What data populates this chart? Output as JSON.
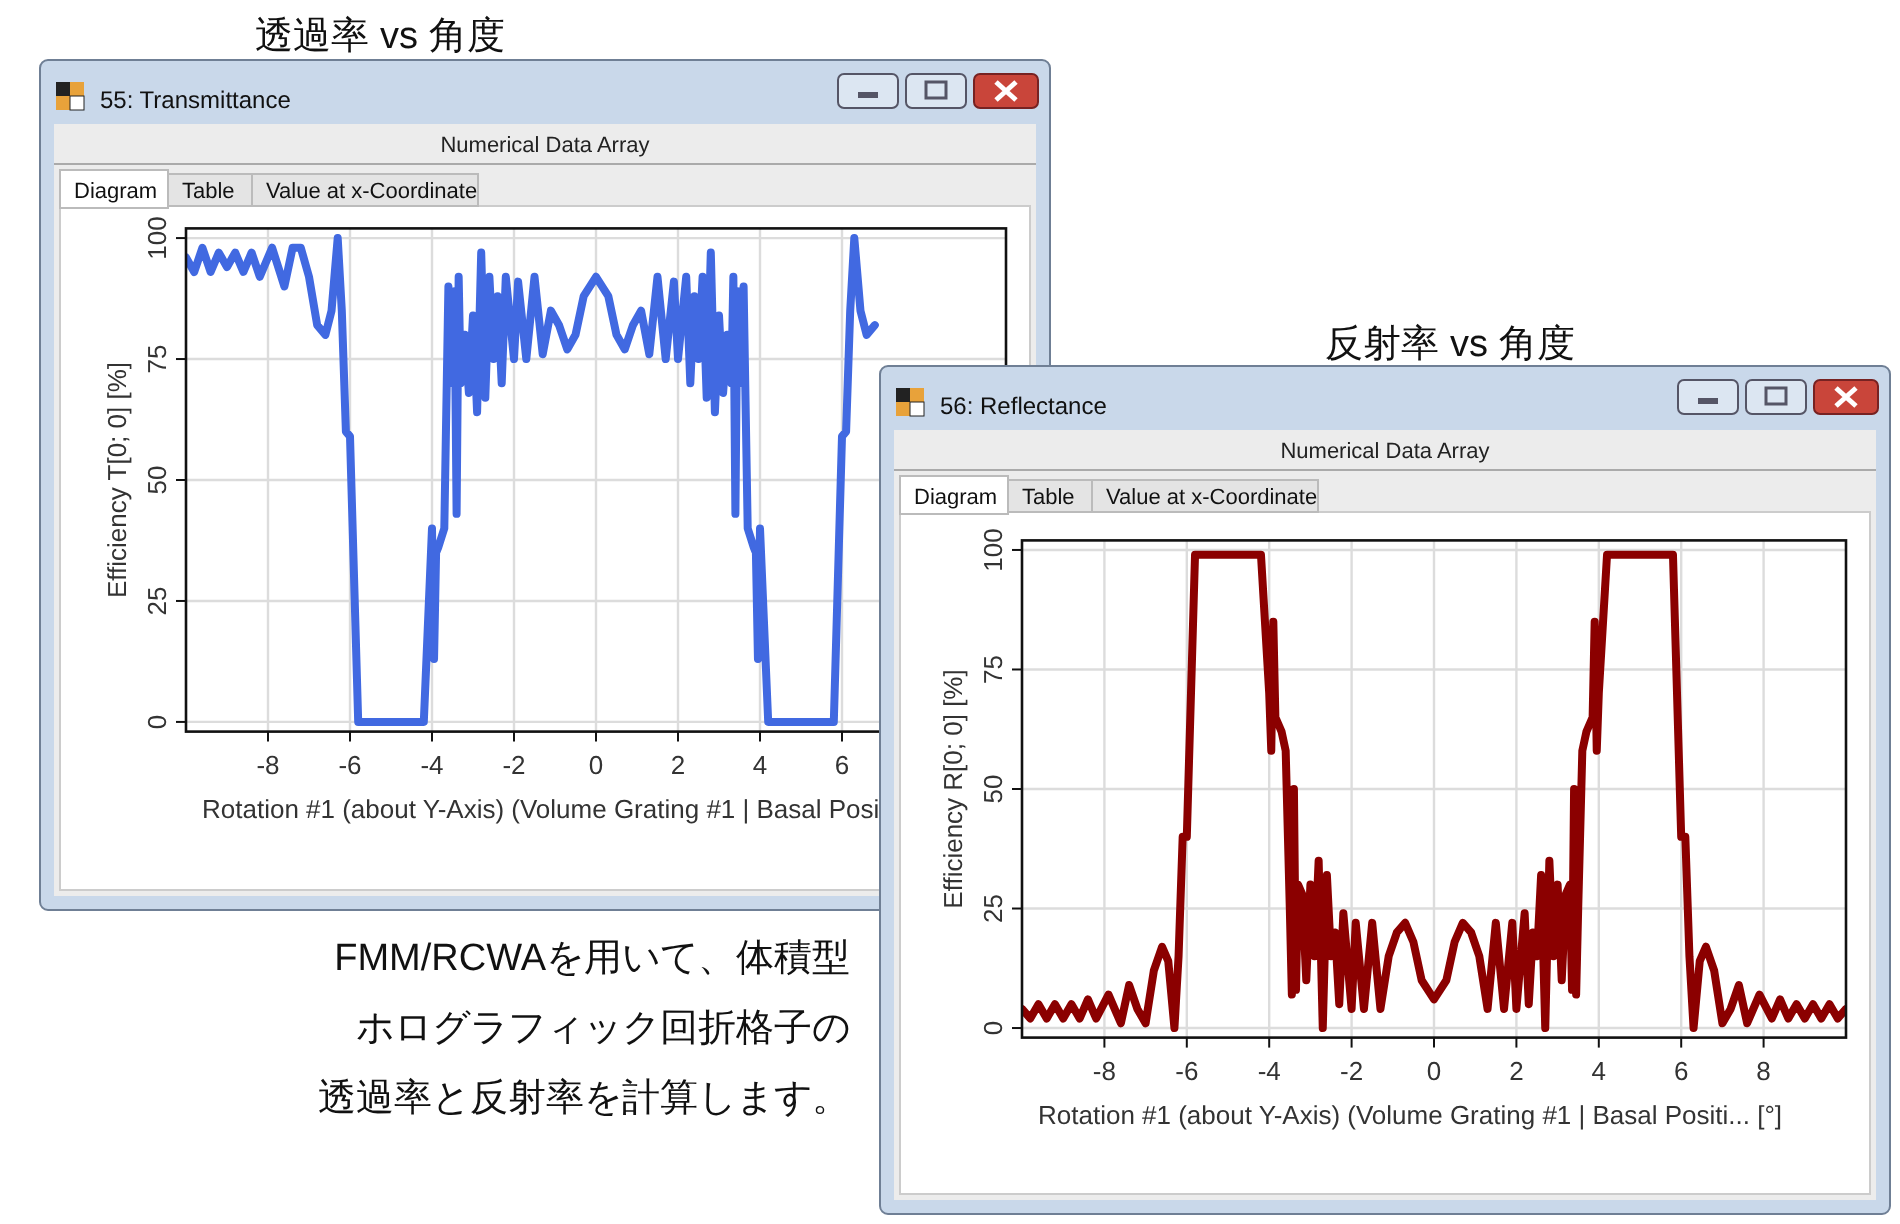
{
  "chart_data": [
    {
      "type": "line",
      "title": "透過率 vs 角度",
      "subtitle": "55: Transmittance",
      "xlabel": "Rotation #1 (about Y-Axis) (Volume Grating #1 | Basal Posi",
      "ylabel": "Efficiency T[0; 0] [%]",
      "annotations": [
        "Numerical Data Array",
        "Diagram",
        "Table",
        "Value at x-Coordinate",
        "FMM/RCWAを用いて、体積型",
        "ホログラフィック回折格子の",
        "透過率と反射率を計算します。"
      ],
      "x": [
        -10,
        -9.8,
        -9.6,
        -9.4,
        -9.2,
        -9,
        -8.8,
        -8.6,
        -8.4,
        -8.2,
        -7.9,
        -7.6,
        -7.4,
        -7.2,
        -7,
        -6.8,
        -6.6,
        -6.45,
        -6.3,
        -6.2,
        -6.1,
        -6,
        -5.8,
        -4.2,
        -4,
        -3.95,
        -3.9,
        -3.85,
        -3.7,
        -3.6,
        -3.5,
        -3.45,
        -3.4,
        -3.35,
        -3.3,
        -3.2,
        -3.1,
        -3,
        -2.9,
        -2.8,
        -2.7,
        -2.6,
        -2.5,
        -2.4,
        -2.3,
        -2.2,
        -2,
        -1.9,
        -1.7,
        -1.5,
        -1.3,
        -1.1,
        -0.9,
        -0.7,
        -0.5,
        -0.3,
        0,
        0.3,
        0.5,
        0.7,
        0.9,
        1.1,
        1.3,
        1.5,
        1.7,
        1.9,
        2,
        2.2,
        2.3,
        2.4,
        2.5,
        2.6,
        2.7,
        2.8,
        2.9,
        3,
        3.1,
        3.2,
        3.3,
        3.35,
        3.4,
        3.45,
        3.5,
        3.6,
        3.7,
        3.85,
        3.9,
        3.95,
        4,
        4.2,
        5.8,
        6,
        6.1,
        6.2,
        6.3,
        6.45,
        6.6,
        6.8
      ],
      "series": [
        {
          "color": "#4169e1",
          "values": [
            96,
            93,
            98,
            93,
            97,
            94,
            97,
            93,
            97,
            92,
            98,
            90,
            98,
            98,
            92,
            82,
            80,
            85,
            100,
            85,
            60,
            59,
            0,
            0,
            40,
            13,
            35,
            36,
            40,
            90,
            70,
            89,
            43,
            92,
            70,
            80,
            68,
            84,
            64,
            97,
            67,
            92,
            75,
            88,
            70,
            92,
            75,
            91,
            75,
            92,
            76,
            85,
            82,
            77,
            80,
            88,
            92,
            88,
            80,
            77,
            82,
            85,
            76,
            92,
            75,
            91,
            75,
            92,
            70,
            88,
            75,
            92,
            67,
            97,
            64,
            84,
            68,
            80,
            70,
            92,
            43,
            89,
            70,
            90,
            40,
            36,
            35,
            13,
            40,
            0,
            0,
            59,
            60,
            85,
            100,
            85,
            80,
            82
          ]
        }
      ],
      "xlim": [
        -10,
        10
      ],
      "ylim": [
        -2,
        102
      ],
      "xticks": [
        -8,
        -6,
        -4,
        -2,
        0,
        2,
        4,
        6
      ],
      "yticks": [
        0,
        25,
        50,
        75,
        100
      ],
      "grid": true
    },
    {
      "type": "line",
      "title": "反射率 vs 角度",
      "subtitle": "56: Reflectance",
      "xlabel": "Rotation #1 (about Y-Axis) (Volume Grating #1 | Basal Positi... [°]",
      "ylabel": "Efficiency R[0; 0] [%]",
      "annotations": [
        "Numerical Data Array",
        "Diagram",
        "Table",
        "Value at x-Coordinate"
      ],
      "x": [
        -10,
        -9.8,
        -9.6,
        -9.4,
        -9.2,
        -9,
        -8.8,
        -8.6,
        -8.4,
        -8.2,
        -7.9,
        -7.6,
        -7.4,
        -7.2,
        -7,
        -6.8,
        -6.6,
        -6.45,
        -6.3,
        -6.2,
        -6.1,
        -6,
        -5.8,
        -4.2,
        -4,
        -3.95,
        -3.9,
        -3.85,
        -3.7,
        -3.6,
        -3.5,
        -3.45,
        -3.4,
        -3.35,
        -3.3,
        -3.2,
        -3.1,
        -3,
        -2.9,
        -2.8,
        -2.7,
        -2.6,
        -2.5,
        -2.4,
        -2.3,
        -2.2,
        -2,
        -1.9,
        -1.7,
        -1.5,
        -1.3,
        -1.1,
        -0.9,
        -0.7,
        -0.5,
        -0.3,
        0,
        0.3,
        0.5,
        0.7,
        0.9,
        1.1,
        1.3,
        1.5,
        1.7,
        1.9,
        2,
        2.2,
        2.3,
        2.4,
        2.5,
        2.6,
        2.7,
        2.8,
        2.9,
        3,
        3.1,
        3.2,
        3.3,
        3.35,
        3.4,
        3.45,
        3.5,
        3.6,
        3.7,
        3.85,
        3.9,
        3.95,
        4,
        4.2,
        5.8,
        6,
        6.1,
        6.2,
        6.3,
        6.45,
        6.6,
        6.8,
        7,
        7.2,
        7.4,
        7.6,
        7.9,
        8.2,
        8.4,
        8.6,
        8.8,
        9,
        9.2,
        9.4,
        9.6,
        9.8,
        10
      ],
      "series": [
        {
          "color": "#8b0000",
          "values": [
            4,
            2,
            5,
            2,
            5,
            2,
            5,
            2,
            6,
            2,
            7,
            1,
            9,
            4,
            1,
            12,
            17,
            14,
            0,
            15,
            40,
            40,
            99,
            99,
            70,
            58,
            85,
            65,
            62,
            58,
            25,
            7,
            50,
            8,
            30,
            28,
            10,
            30,
            15,
            35,
            0,
            32,
            15,
            20,
            5,
            24,
            4,
            22,
            4,
            22,
            4,
            15,
            20,
            22,
            18,
            10,
            6,
            10,
            18,
            22,
            20,
            15,
            4,
            22,
            4,
            22,
            4,
            24,
            5,
            20,
            15,
            32,
            0,
            35,
            15,
            30,
            10,
            28,
            30,
            8,
            50,
            7,
            25,
            58,
            62,
            65,
            85,
            58,
            70,
            99,
            99,
            40,
            40,
            15,
            0,
            14,
            17,
            12,
            1,
            4,
            9,
            1,
            7,
            2,
            6,
            2,
            5,
            2,
            5,
            2,
            5,
            2,
            4
          ]
        }
      ],
      "xlim": [
        -10,
        10
      ],
      "ylim": [
        -2,
        102
      ],
      "xticks": [
        -8,
        -6,
        -4,
        -2,
        0,
        2,
        4,
        6,
        8
      ],
      "yticks": [
        0,
        25,
        50,
        75,
        100
      ],
      "grid": true
    }
  ]
}
